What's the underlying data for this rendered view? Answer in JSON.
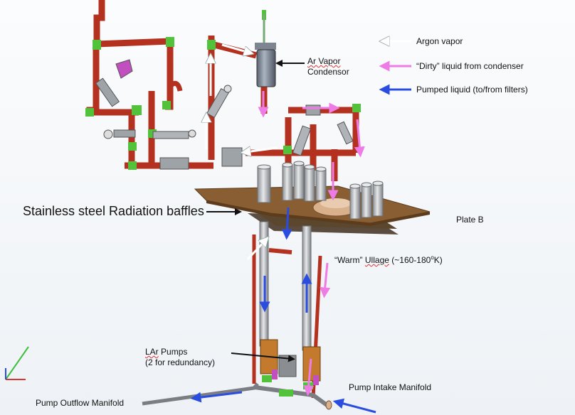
{
  "colors": {
    "pipe": "#b3311e",
    "fitting": "#52c23a",
    "plate": "#8a5e33",
    "cylinder": "#b7b9bc",
    "argon_vapor": "#ffffff",
    "dirty_liquid": "#ee7be6",
    "pumped_liquid": "#2a4de0"
  },
  "legend": {
    "argon_vapor": "Argon vapor",
    "dirty_liquid": "“Dirty” liquid from condenser",
    "pumped_liquid": "Pumped liquid (to/from filters)"
  },
  "labels": {
    "condensor_line1": "Ar Vapor",
    "condensor_line2": "Condensor",
    "baffles": "Stainless steel Radiation baffles",
    "plate_b": "Plate B",
    "ullage_pre": "“Warm”",
    "ullage_word": "Ullage",
    "ullage_post": "(~160-180",
    "ullage_sup": "o",
    "ullage_end": "K)",
    "pumps_line1_a": "LAr",
    "pumps_line1_b": "Pumps",
    "pumps_line2": "(2 for redundancy)",
    "pump_intake": "Pump Intake Manifold",
    "pump_outflow": "Pump Outflow Manifold"
  }
}
